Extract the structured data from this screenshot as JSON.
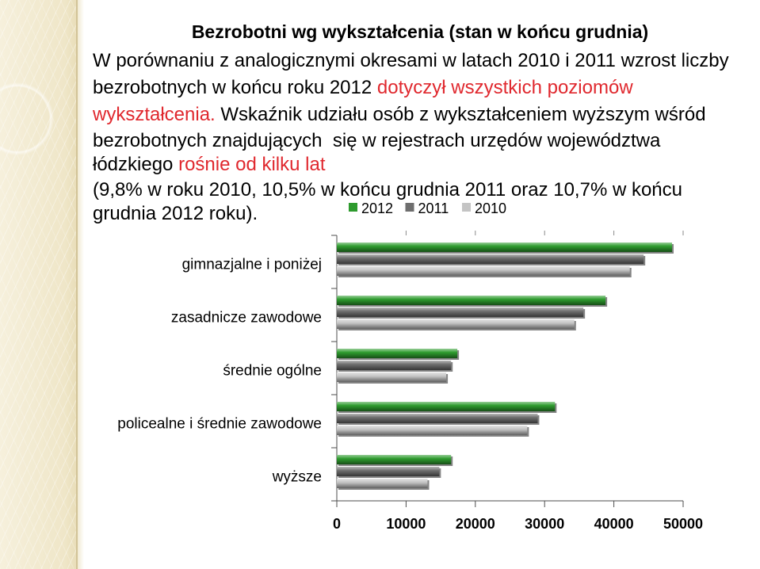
{
  "slide": {
    "title": "Bezrobotni wg wykształcenia (stan w końcu grudnia)",
    "lines": [
      [
        {
          "text": "W porównaniu z analogicznymi okresami w latach 2010 i 2011 wzrost liczby"
        }
      ],
      [
        {
          "text": "bezrobotnych w końcu roku 2012 "
        },
        {
          "text": "dotyczył wszystkich poziomów",
          "emphasis": true
        }
      ],
      [
        {
          "text": "wykształcenia.",
          "emphasis": true
        },
        {
          "text": " Wskaźnik udziału osób z wykształceniem wyższym wśród"
        }
      ],
      [
        {
          "text": "bezrobotnych znajdujących  się w rejestrach urzędów województwa"
        }
      ],
      [
        {
          "text": "łódzkiego "
        },
        {
          "text": "rośnie od kilku lat",
          "emphasis": true
        }
      ],
      [
        {
          "text": "(9,8% w roku 2010, 10,5% w końcu grudnia 2011 oraz 10,7% w końcu"
        }
      ],
      [
        {
          "text": "grudnia 2012 roku)."
        }
      ]
    ]
  },
  "colors": {
    "text": "#000000",
    "emphasis": "#E0282E"
  },
  "chart_data": {
    "type": "bar",
    "orientation": "horizontal",
    "title": "",
    "xlabel": "",
    "ylabel": "",
    "categories": [
      "gimnazjalne i poniżej",
      "zasadnicze zawodowe",
      "średnie ogólne",
      "policealne i średnie zawodowe",
      "wyższe"
    ],
    "series": [
      {
        "name": "2012",
        "color": "#2E9B2E",
        "values": [
          48400,
          38800,
          17400,
          31500,
          16500
        ]
      },
      {
        "name": "2011",
        "color": "#6E6E6E",
        "values": [
          44300,
          35600,
          16500,
          29000,
          14800
        ]
      },
      {
        "name": "2010",
        "color": "#C4C4C4",
        "values": [
          42300,
          34300,
          15800,
          27500,
          13100
        ]
      }
    ],
    "xlim": [
      0,
      50000
    ],
    "xticks": [
      0,
      10000,
      20000,
      30000,
      40000,
      50000
    ],
    "legend": "top",
    "grid": false
  }
}
